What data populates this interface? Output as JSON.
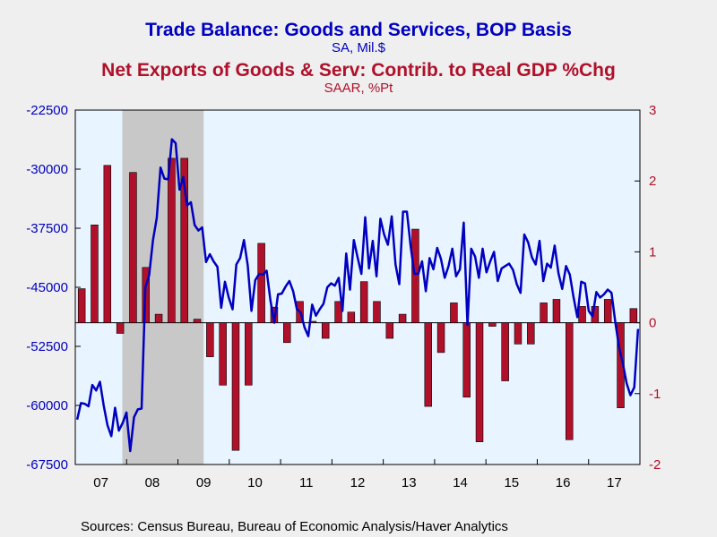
{
  "chart_data": {
    "type": "bar+line",
    "title1": "Trade Balance: Goods and Services, BOP Basis",
    "subtitle1": "SA, Mil.$",
    "title2": "Net Exports of Goods & Serv: Contrib. to Real GDP %Chg",
    "subtitle2": "SAAR, %Pt",
    "source": "Sources:  Census Bureau, Bureau of Economic Analysis/Haver Analytics",
    "x_range": [
      2007.0,
      2018.0
    ],
    "x_tick_labels": [
      "07",
      "08",
      "09",
      "10",
      "11",
      "12",
      "13",
      "14",
      "15",
      "16",
      "17"
    ],
    "left_axis": {
      "range": [
        -67500,
        -22500
      ],
      "ticks": [
        -22500,
        -30000,
        -37500,
        -45000,
        -52500,
        -60000,
        -67500
      ],
      "labels": [
        "-22500",
        "-30000",
        "-37500",
        "-45000",
        "-52500",
        "-60000",
        "-67500"
      ]
    },
    "right_axis": {
      "range": [
        -2,
        3
      ],
      "ticks": [
        3,
        2,
        1,
        0,
        -1,
        -2
      ],
      "labels": [
        "3",
        "2",
        "1",
        "0",
        "-1",
        "-2"
      ]
    },
    "recession": {
      "start": 2007.917,
      "end": 2009.5
    },
    "bar_series": {
      "name": "Net Exports of Goods & Serv: Contrib. to Real GDP %Chg",
      "axis": "right",
      "color": "#b0102a",
      "values": [
        0.48,
        1.38,
        2.22,
        -0.15,
        2.12,
        0.78,
        0.12,
        2.32,
        2.32,
        0.05,
        -0.48,
        -0.88,
        -1.8,
        -0.88,
        1.12,
        0.22,
        -0.28,
        0.3,
        0.02,
        -0.22,
        0.3,
        0.15,
        0.58,
        0.3,
        -0.22,
        0.12,
        1.32,
        -1.18,
        -0.42,
        0.28,
        -1.05,
        -1.68,
        -0.05,
        -0.82,
        -0.3,
        -0.3,
        0.28,
        0.33,
        -1.65,
        0.23,
        0.23,
        0.33,
        -1.2,
        0.2
      ]
    },
    "line_series": {
      "name": "Trade Balance: Goods and Services, BOP Basis",
      "axis": "left",
      "color": "#0000c0",
      "values": [
        -61800,
        -59700,
        -59800,
        -60100,
        -57400,
        -58100,
        -57000,
        -60000,
        -62500,
        -63900,
        -60300,
        -63200,
        -62200,
        -60900,
        -65800,
        -61500,
        -60500,
        -60400,
        -45000,
        -43500,
        -39000,
        -36200,
        -29800,
        -31200,
        -31300,
        -26200,
        -26700,
        -32600,
        -31000,
        -34600,
        -34200,
        -37100,
        -37800,
        -37400,
        -41800,
        -40800,
        -41700,
        -42400,
        -47600,
        -44300,
        -46300,
        -47800,
        -42100,
        -41300,
        -39000,
        -42200,
        -48000,
        -44100,
        -43300,
        -43400,
        -42900,
        -46700,
        -49500,
        -45900,
        -45800,
        -44900,
        -44200,
        -45500,
        -47800,
        -48200,
        -50100,
        -51200,
        -47200,
        -48600,
        -47800,
        -47100,
        -45000,
        -44500,
        -44800,
        -43800,
        -48000,
        -40700,
        -45300,
        -39000,
        -41200,
        -43300,
        -36100,
        -42600,
        -39100,
        -43600,
        -36300,
        -38300,
        -39600,
        -36000,
        -42100,
        -44600,
        -35400,
        -35400,
        -39800,
        -43300,
        -43300,
        -41700,
        -45500,
        -41300,
        -42700,
        -40000,
        -41400,
        -43800,
        -42300,
        -40100,
        -43600,
        -42700,
        -36800,
        -49800,
        -40100,
        -41100,
        -43800,
        -40100,
        -43100,
        -41700,
        -40500,
        -44200,
        -42600,
        -42300,
        -42000,
        -42800,
        -44600,
        -45700,
        -38300,
        -39300,
        -41200,
        -42100,
        -39100,
        -44200,
        -42000,
        -42500,
        -39700,
        -43200,
        -45200,
        -42300,
        -43400,
        -46300,
        -48800,
        -44300,
        -44500,
        -48000,
        -48700,
        -45600,
        -46300,
        -45900,
        -45300,
        -45700,
        -49400,
        -52600,
        -54700,
        -57200,
        -58700,
        -57700,
        -50300
      ]
    }
  }
}
